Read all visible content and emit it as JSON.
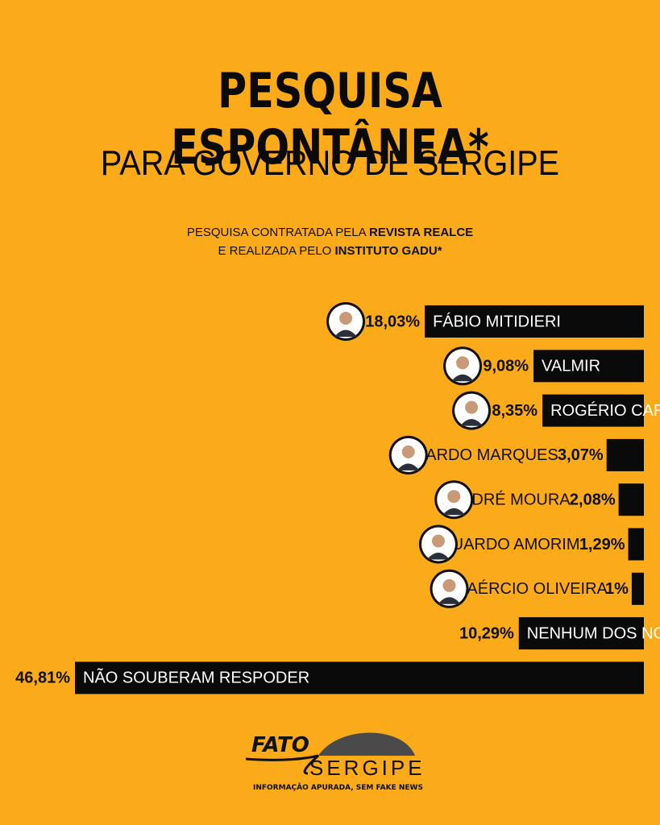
{
  "header": {
    "title": "PESQUISA ESPONTÂNEA*",
    "subtitle": "PARA GOVERNO DE SERGIPE",
    "credit_line1_prefix": "PESQUISA CONTRATADA PELA ",
    "credit_line1_bold": "REVISTA REALCE",
    "credit_line2_prefix": "E REALIZADA PELO ",
    "credit_line2_bold": "INSTITUTO GADU*"
  },
  "chart_data": {
    "type": "bar",
    "orientation": "horizontal",
    "categories": [
      "FÁBIO MITIDIERI",
      "VALMIR",
      "ROGÉRIO CARVALHO",
      "RICARDO MARQUES",
      "ANDRÉ MOURA",
      "EDUARDO AMORIM",
      "LAÉRCIO OLIVEIRA",
      "NENHUM DOS NOMES",
      "NÃO SOUBERAM RESPODER"
    ],
    "values": [
      18.03,
      9.08,
      8.35,
      3.07,
      2.08,
      1.29,
      1.0,
      10.29,
      46.81
    ],
    "value_labels": [
      "18,03%",
      "9,08%",
      "8,35%",
      "3,07%",
      "2,08%",
      "1,29%",
      "1%",
      "10,29%",
      "46,81%"
    ],
    "has_photo": [
      true,
      true,
      true,
      true,
      true,
      true,
      true,
      false,
      false
    ],
    "label_inside_bar": [
      true,
      true,
      true,
      false,
      false,
      false,
      false,
      true,
      true
    ],
    "bar_color": "#0a0a0a",
    "background": "#fbaa1a"
  },
  "logo": {
    "word1": "FATO",
    "word2": "SERGIPE",
    "tagline": "INFORMAÇÃO APURADA, SEM FAKE NEWS"
  }
}
